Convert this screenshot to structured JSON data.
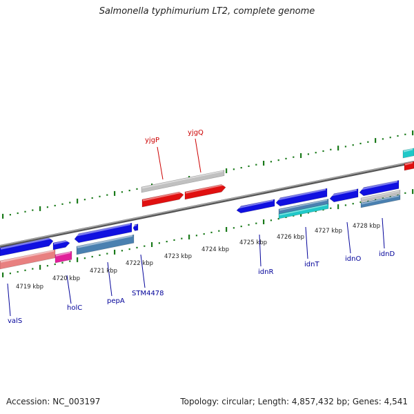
{
  "title": "Salmonella typhimurium LT2, complete genome",
  "footer": {
    "accession_label": "Accession:",
    "accession": "NC_003197",
    "topology_label": "Topology:",
    "topology": "circular",
    "length_label": "Length:",
    "length": "4,857,432 bp",
    "genes_label": "Genes:",
    "genes": "4,541"
  },
  "ruler": {
    "unit": "kbp",
    "ticks": [
      {
        "kbp": 4719,
        "label": "4719 kbp"
      },
      {
        "kbp": 4720,
        "label": "4720 kbp"
      },
      {
        "kbp": 4721,
        "label": "4721 kbp"
      },
      {
        "kbp": 4722,
        "label": "4722 kbp"
      },
      {
        "kbp": 4723,
        "label": "4723 kbp"
      },
      {
        "kbp": 4724,
        "label": "4724 kbp"
      },
      {
        "kbp": 4725,
        "label": "4725 kbp"
      },
      {
        "kbp": 4726,
        "label": "4726 kbp"
      },
      {
        "kbp": 4727,
        "label": "4727 kbp"
      },
      {
        "kbp": 4728,
        "label": "4728 kbp"
      }
    ]
  },
  "gene_labels": {
    "forward": [
      {
        "name": "yjgP",
        "color": "#cc0000"
      },
      {
        "name": "yjgQ",
        "color": "#cc0000"
      }
    ],
    "reverse": [
      {
        "name": "valS",
        "color": "#000099"
      },
      {
        "name": "holC",
        "color": "#000099"
      },
      {
        "name": "pepA",
        "color": "#000099"
      },
      {
        "name": "STM4478",
        "color": "#000099"
      },
      {
        "name": "idnR",
        "color": "#000099"
      },
      {
        "name": "idnT",
        "color": "#000099"
      },
      {
        "name": "idnO",
        "color": "#000099"
      },
      {
        "name": "idnD",
        "color": "#000099"
      }
    ]
  },
  "colors": {
    "backbone": "#8c8c8c",
    "tick": "#1a7a1a",
    "cds": "#1010e0",
    "rna": "#e01010",
    "grey_feature": "#c0c0c0",
    "cyan_feature": "#20c8c8",
    "steel_feature": "#4a80b0",
    "pink_feature": "#e88080",
    "magenta_feature": "#e0209a"
  }
}
